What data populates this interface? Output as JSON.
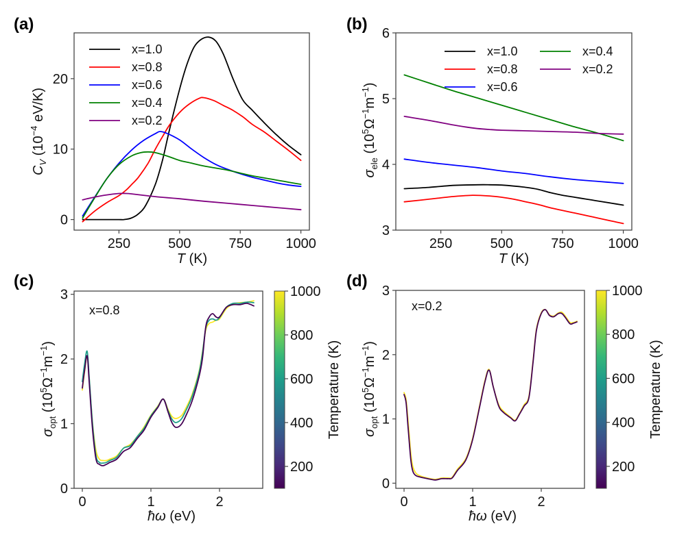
{
  "chart_data": [
    {
      "id": "a",
      "panel_label": "(a)",
      "type": "line",
      "xlabel_italic": "T",
      "xlabel_rest": " (K)",
      "ylabel_main": "C",
      "ylabel_sub": "V",
      "ylabel_rest": " (10",
      "ylabel_sup": "−4",
      "ylabel_tail": " eV/K)",
      "xlim": [
        65,
        1035
      ],
      "ylim": [
        -1.5,
        26.5
      ],
      "xticks": [
        250,
        500,
        750,
        1000
      ],
      "yticks": [
        0,
        10,
        20
      ],
      "legend": {
        "placement": "upper-left",
        "columns": 1
      },
      "series": [
        {
          "name": "x=1.0",
          "color": "#000000",
          "x": [
            100,
            150,
            200,
            250,
            270,
            300,
            330,
            360,
            400,
            430,
            460,
            500,
            530,
            560,
            590,
            620,
            650,
            680,
            720,
            760,
            800,
            850,
            900,
            950,
            1000
          ],
          "y": [
            0,
            0,
            0,
            0,
            0,
            0.2,
            0.8,
            2.0,
            5.0,
            8.5,
            13.0,
            18.5,
            22.0,
            24.5,
            25.6,
            25.9,
            25.3,
            23.5,
            20.0,
            17.0,
            15.5,
            13.7,
            12.0,
            10.5,
            9.2
          ]
        },
        {
          "name": "x=0.8",
          "color": "#ff0000",
          "x": [
            100,
            150,
            200,
            250,
            280,
            300,
            330,
            370,
            400,
            430,
            460,
            500,
            540,
            580,
            600,
            640,
            680,
            720,
            760,
            800,
            850,
            900,
            950,
            1000
          ],
          "y": [
            -0.3,
            1.2,
            2.4,
            3.4,
            4.2,
            4.9,
            6.0,
            8.0,
            10.0,
            11.8,
            13.5,
            15.2,
            16.4,
            17.2,
            17.3,
            16.9,
            16.2,
            15.5,
            14.6,
            13.5,
            12.4,
            11.1,
            9.8,
            8.4
          ]
        },
        {
          "name": "x=0.6",
          "color": "#0000ff",
          "x": [
            100,
            150,
            200,
            250,
            300,
            350,
            400,
            420,
            450,
            500,
            550,
            600,
            650,
            700,
            750,
            800,
            850,
            900,
            950,
            1000
          ],
          "y": [
            0.5,
            3.2,
            5.8,
            8.0,
            9.8,
            11.2,
            12.2,
            12.5,
            12.2,
            11.3,
            10.0,
            8.8,
            7.8,
            7.1,
            6.5,
            6.0,
            5.6,
            5.2,
            4.9,
            4.7
          ]
        },
        {
          "name": "x=0.4",
          "color": "#008000",
          "x": [
            100,
            150,
            200,
            250,
            300,
            340,
            370,
            400,
            450,
            500,
            550,
            600,
            650,
            700,
            750,
            800,
            850,
            900,
            950,
            1000
          ],
          "y": [
            0.2,
            3.1,
            5.8,
            7.8,
            9.0,
            9.5,
            9.6,
            9.5,
            9.0,
            8.4,
            8.0,
            7.6,
            7.3,
            7.0,
            6.6,
            6.2,
            5.9,
            5.6,
            5.3,
            5.0
          ]
        },
        {
          "name": "x=0.2",
          "color": "#800080",
          "x": [
            100,
            150,
            200,
            250,
            280,
            300,
            350,
            400,
            450,
            500,
            600,
            700,
            800,
            900,
            1000
          ],
          "y": [
            2.8,
            3.2,
            3.5,
            3.7,
            3.7,
            3.65,
            3.45,
            3.25,
            3.1,
            2.95,
            2.6,
            2.3,
            2.0,
            1.7,
            1.4
          ]
        }
      ]
    },
    {
      "id": "b",
      "panel_label": "(b)",
      "type": "line",
      "xlabel_italic": "T",
      "xlabel_rest": " (K)",
      "ylabel_main": "σ",
      "ylabel_sub": "ele",
      "ylabel_rest": " (10",
      "ylabel_sup": "5",
      "ylabel_tail": "Ω",
      "ylabel_sup2": "−1",
      "ylabel_tail2": "m",
      "ylabel_sup3": "−1",
      "ylabel_tail3": ")",
      "xlim": [
        65,
        1035
      ],
      "ylim": [
        3.0,
        6.0
      ],
      "xticks": [
        250,
        500,
        750,
        1000
      ],
      "yticks": [
        3,
        4,
        5,
        6
      ],
      "legend": {
        "placement": "upper-right",
        "columns": 2
      },
      "series": [
        {
          "name": "x=1.0",
          "color": "#000000",
          "x": [
            100,
            200,
            300,
            400,
            450,
            500,
            550,
            600,
            650,
            700,
            750,
            800,
            850,
            900,
            950,
            1000
          ],
          "y": [
            3.63,
            3.65,
            3.68,
            3.69,
            3.69,
            3.685,
            3.67,
            3.65,
            3.62,
            3.57,
            3.53,
            3.5,
            3.47,
            3.44,
            3.41,
            3.38
          ]
        },
        {
          "name": "x=0.8",
          "color": "#ff0000",
          "x": [
            100,
            200,
            300,
            380,
            450,
            500,
            550,
            600,
            650,
            700,
            750,
            800,
            850,
            900,
            950,
            1000
          ],
          "y": [
            3.43,
            3.47,
            3.51,
            3.53,
            3.52,
            3.5,
            3.47,
            3.43,
            3.39,
            3.34,
            3.3,
            3.26,
            3.22,
            3.18,
            3.14,
            3.1
          ]
        },
        {
          "name": "x=0.6",
          "color": "#0000ff",
          "x": [
            100,
            200,
            300,
            400,
            500,
            600,
            700,
            800,
            900,
            1000
          ],
          "y": [
            4.08,
            4.03,
            3.99,
            3.95,
            3.9,
            3.86,
            3.81,
            3.77,
            3.74,
            3.71
          ]
        },
        {
          "name": "x=0.4",
          "color": "#008000",
          "x": [
            100,
            200,
            300,
            400,
            500,
            600,
            700,
            800,
            900,
            1000
          ],
          "y": [
            5.36,
            5.24,
            5.12,
            5.01,
            4.9,
            4.79,
            4.68,
            4.57,
            4.47,
            4.36
          ]
        },
        {
          "name": "x=0.2",
          "color": "#800080",
          "x": [
            100,
            200,
            300,
            350,
            400,
            450,
            500,
            600,
            700,
            800,
            900,
            1000
          ],
          "y": [
            4.73,
            4.67,
            4.6,
            4.57,
            4.545,
            4.53,
            4.52,
            4.51,
            4.5,
            4.49,
            4.47,
            4.46
          ]
        }
      ]
    },
    {
      "id": "c",
      "panel_label": "(c)",
      "type": "line",
      "annotation": "x=0.8",
      "xlabel_italic": "ħω",
      "xlabel_rest": " (eV)",
      "ylabel_main": "σ",
      "ylabel_sub": "opt",
      "ylabel_rest": " (10",
      "ylabel_sup": "5",
      "ylabel_tail": "Ω",
      "ylabel_sup2": "−1",
      "ylabel_tail2": "m",
      "ylabel_sup3": "−1",
      "ylabel_tail3": ")",
      "xlim": [
        -0.12,
        2.63
      ],
      "ylim": [
        0.0,
        3.05
      ],
      "xticks": [
        0,
        1,
        2
      ],
      "yticks": [
        0,
        1,
        2,
        3
      ],
      "colorbar": {
        "label": "Temperature (K)",
        "range": [
          100,
          1000
        ],
        "ticks": [
          200,
          400,
          600,
          800,
          1000
        ],
        "colormap": "viridis"
      },
      "series": [
        {
          "name": "T=1000 K",
          "temperature": 1000,
          "x": [
            0.0,
            0.03,
            0.07,
            0.1,
            0.15,
            0.2,
            0.25,
            0.3,
            0.35,
            0.4,
            0.5,
            0.6,
            0.7,
            0.8,
            0.9,
            1.0,
            1.1,
            1.18,
            1.25,
            1.3,
            1.35,
            1.4,
            1.45,
            1.5,
            1.6,
            1.7,
            1.75,
            1.8,
            1.85,
            1.9,
            1.95,
            2.0,
            2.1,
            2.2,
            2.3,
            2.4,
            2.5
          ],
          "y": [
            1.52,
            1.78,
            2.05,
            1.7,
            1.0,
            0.58,
            0.45,
            0.43,
            0.43,
            0.45,
            0.5,
            0.62,
            0.68,
            0.8,
            0.95,
            1.13,
            1.27,
            1.38,
            1.22,
            1.12,
            1.08,
            1.09,
            1.13,
            1.22,
            1.45,
            1.8,
            2.1,
            2.45,
            2.55,
            2.57,
            2.6,
            2.62,
            2.78,
            2.85,
            2.87,
            2.88,
            2.9
          ]
        },
        {
          "name": "T=600 K",
          "temperature": 600,
          "x": [
            0.0,
            0.03,
            0.07,
            0.1,
            0.15,
            0.2,
            0.25,
            0.3,
            0.35,
            0.4,
            0.5,
            0.6,
            0.7,
            0.8,
            0.9,
            1.0,
            1.1,
            1.18,
            1.25,
            1.3,
            1.35,
            1.4,
            1.45,
            1.5,
            1.6,
            1.7,
            1.75,
            1.8,
            1.85,
            1.9,
            1.95,
            2.0,
            2.1,
            2.2,
            2.3,
            2.4,
            2.5
          ],
          "y": [
            1.65,
            1.9,
            2.12,
            1.72,
            0.98,
            0.5,
            0.4,
            0.39,
            0.4,
            0.43,
            0.48,
            0.62,
            0.66,
            0.8,
            0.93,
            1.12,
            1.26,
            1.38,
            1.2,
            1.08,
            1.02,
            1.03,
            1.08,
            1.18,
            1.42,
            1.78,
            2.08,
            2.48,
            2.6,
            2.62,
            2.6,
            2.64,
            2.8,
            2.86,
            2.86,
            2.88,
            2.87
          ]
        },
        {
          "name": "T=100 K",
          "temperature": 100,
          "x": [
            0.0,
            0.03,
            0.07,
            0.1,
            0.15,
            0.2,
            0.25,
            0.3,
            0.35,
            0.4,
            0.5,
            0.6,
            0.7,
            0.8,
            0.9,
            1.0,
            1.1,
            1.18,
            1.25,
            1.3,
            1.35,
            1.4,
            1.45,
            1.5,
            1.6,
            1.7,
            1.75,
            1.8,
            1.85,
            1.9,
            1.95,
            2.0,
            2.1,
            2.2,
            2.3,
            2.4,
            2.5
          ],
          "y": [
            1.55,
            1.8,
            2.05,
            1.65,
            0.9,
            0.45,
            0.37,
            0.35,
            0.37,
            0.4,
            0.45,
            0.57,
            0.63,
            0.77,
            0.9,
            1.1,
            1.25,
            1.38,
            1.18,
            1.03,
            0.95,
            0.95,
            1.0,
            1.1,
            1.35,
            1.72,
            2.0,
            2.5,
            2.65,
            2.7,
            2.65,
            2.65,
            2.8,
            2.84,
            2.84,
            2.86,
            2.82
          ]
        }
      ]
    },
    {
      "id": "d",
      "panel_label": "(d)",
      "type": "line",
      "annotation": "x=0.2",
      "xlabel_italic": "ħω",
      "xlabel_rest": " (eV)",
      "ylabel_main": "σ",
      "ylabel_sub": "opt",
      "ylabel_rest": " (10",
      "ylabel_sup": "5",
      "ylabel_tail": "Ω",
      "ylabel_sup2": "−1",
      "ylabel_tail2": "m",
      "ylabel_sup3": "−1",
      "ylabel_tail3": ")",
      "xlim": [
        -0.12,
        2.63
      ],
      "ylim": [
        -0.08,
        3.0
      ],
      "xticks": [
        0,
        1,
        2
      ],
      "yticks": [
        0,
        1,
        2,
        3
      ],
      "colorbar": {
        "label": "Temperature (K)",
        "range": [
          100,
          1000
        ],
        "ticks": [
          200,
          400,
          600,
          800,
          1000
        ],
        "colormap": "viridis"
      },
      "series": [
        {
          "name": "T=1000 K",
          "temperature": 1000,
          "x": [
            0.0,
            0.03,
            0.06,
            0.1,
            0.13,
            0.17,
            0.22,
            0.3,
            0.45,
            0.55,
            0.65,
            0.7,
            0.78,
            0.9,
            1.0,
            1.1,
            1.18,
            1.24,
            1.3,
            1.38,
            1.45,
            1.55,
            1.62,
            1.68,
            1.75,
            1.82,
            1.88,
            1.93,
            2.0,
            2.06,
            2.12,
            2.18,
            2.25,
            2.3,
            2.35,
            2.42,
            2.47,
            2.52
          ],
          "y": [
            1.41,
            1.3,
            0.95,
            0.45,
            0.25,
            0.16,
            0.12,
            0.09,
            0.06,
            0.08,
            0.08,
            0.09,
            0.22,
            0.38,
            0.7,
            1.2,
            1.6,
            1.77,
            1.5,
            1.22,
            1.12,
            1.03,
            0.98,
            1.08,
            1.22,
            1.35,
            1.9,
            2.4,
            2.65,
            2.7,
            2.62,
            2.6,
            2.65,
            2.66,
            2.6,
            2.5,
            2.5,
            2.52
          ]
        },
        {
          "name": "T=100 K",
          "temperature": 100,
          "x": [
            0.0,
            0.03,
            0.06,
            0.1,
            0.13,
            0.17,
            0.22,
            0.3,
            0.45,
            0.55,
            0.65,
            0.7,
            0.78,
            0.9,
            1.0,
            1.1,
            1.18,
            1.24,
            1.3,
            1.38,
            1.45,
            1.55,
            1.62,
            1.68,
            1.75,
            1.82,
            1.88,
            1.93,
            2.0,
            2.06,
            2.12,
            2.18,
            2.25,
            2.3,
            2.35,
            2.42,
            2.47,
            2.52
          ],
          "y": [
            1.38,
            1.25,
            0.85,
            0.35,
            0.18,
            0.12,
            0.1,
            0.08,
            0.05,
            0.07,
            0.07,
            0.08,
            0.2,
            0.36,
            0.68,
            1.18,
            1.58,
            1.76,
            1.5,
            1.2,
            1.1,
            1.02,
            0.97,
            1.07,
            1.2,
            1.33,
            1.88,
            2.38,
            2.64,
            2.7,
            2.61,
            2.59,
            2.64,
            2.64,
            2.58,
            2.48,
            2.49,
            2.51
          ]
        }
      ]
    }
  ]
}
